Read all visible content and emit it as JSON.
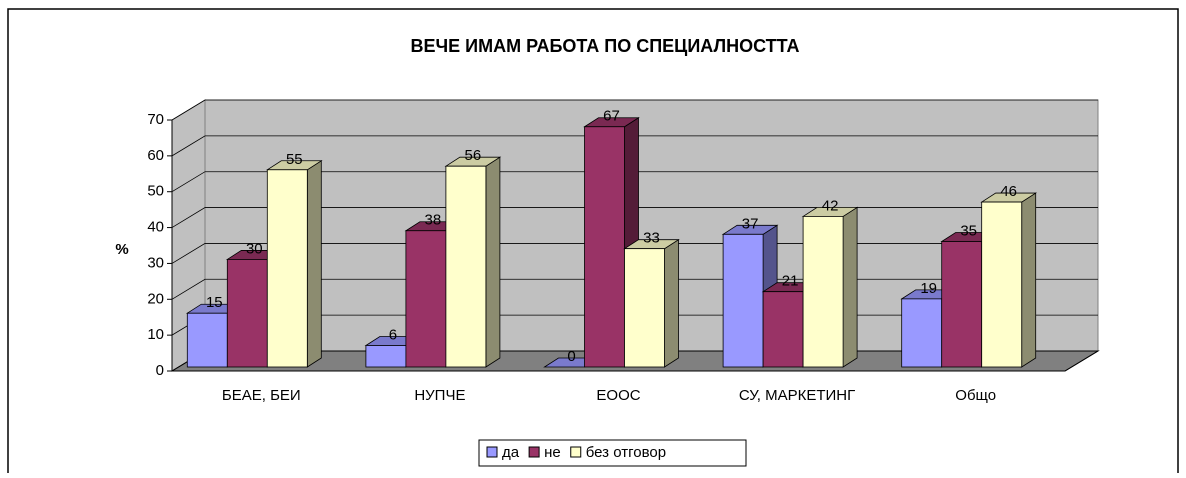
{
  "chart_data": {
    "type": "bar3d",
    "title": "ВЕЧЕ ИМАМ РАБОТА ПО СПЕЦИАЛНОСТТА",
    "y_label": "%",
    "categories": [
      "БЕАЕ, БЕИ",
      "НУПЧЕ",
      "ЕООС",
      "СУ, МАРКЕТИНГ",
      "Общо"
    ],
    "series": [
      {
        "name": "да",
        "color": "#9999ff",
        "values": [
          15,
          6,
          0,
          37,
          19
        ]
      },
      {
        "name": "не",
        "color": "#993366",
        "values": [
          30,
          38,
          67,
          21,
          35
        ]
      },
      {
        "name": "без отговор",
        "color": "#ffffcc",
        "values": [
          55,
          56,
          33,
          42,
          46
        ]
      }
    ],
    "ylim": [
      0,
      70
    ],
    "yticks": [
      0,
      10,
      20,
      30,
      40,
      50,
      60,
      70
    ],
    "grid": true,
    "legend": "bottom"
  }
}
